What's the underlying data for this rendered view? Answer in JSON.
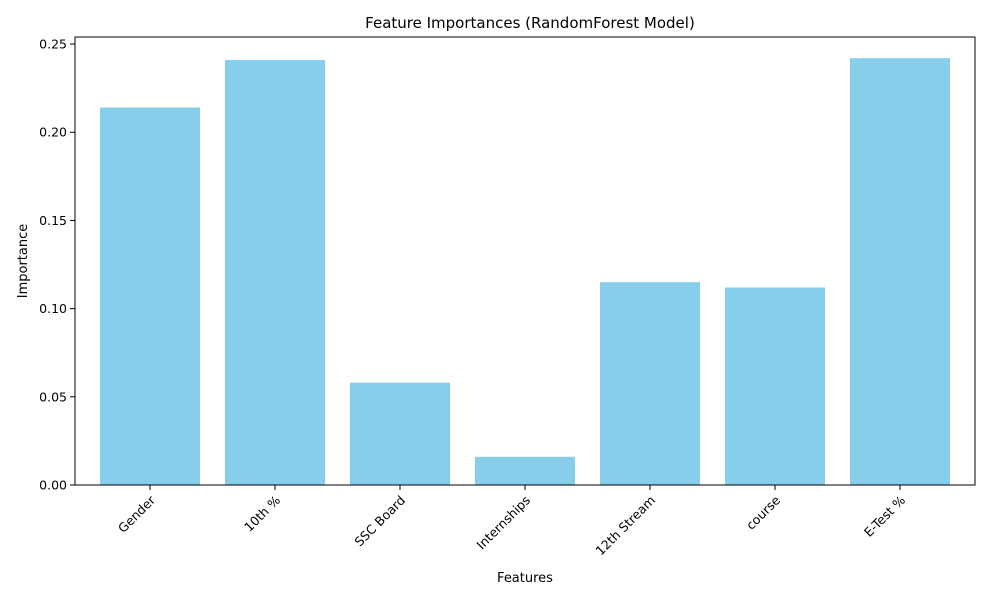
{
  "chart_data": {
    "type": "bar",
    "title": "Feature Importances (RandomForest Model)",
    "xlabel": "Features",
    "ylabel": "Importance",
    "categories": [
      "Gender",
      "10th %",
      "SSC Board",
      "Internships",
      "12th Stream",
      "course",
      "E-Test %"
    ],
    "values": [
      0.214,
      0.241,
      0.058,
      0.016,
      0.115,
      0.112,
      0.242
    ],
    "ylim": [
      0,
      0.254
    ],
    "yticks": [
      0.0,
      0.05,
      0.1,
      0.15,
      0.2,
      0.25
    ],
    "ytick_labels": [
      "0.00",
      "0.05",
      "0.10",
      "0.15",
      "0.20",
      "0.25"
    ],
    "bar_color": "#87CEEB",
    "grid": false,
    "xtick_rotation": 45
  }
}
